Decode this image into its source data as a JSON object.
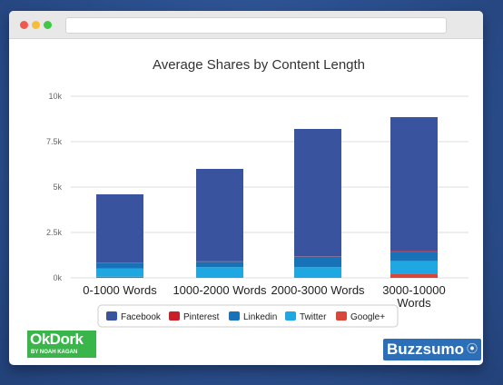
{
  "browser": {
    "address_text": ""
  },
  "chart_data": {
    "type": "bar",
    "stacked": true,
    "title": "Average Shares by Content Length",
    "categories": [
      [
        "0-1000 Words"
      ],
      [
        "1000-2000 Words"
      ],
      [
        "2000-3000 Words"
      ],
      [
        "3000-10000",
        "Words"
      ]
    ],
    "series": [
      {
        "name": "Google+",
        "color": "#d9473b",
        "values": [
          60,
          30,
          30,
          200
        ]
      },
      {
        "name": "Twitter",
        "color": "#1ea7e1",
        "values": [
          450,
          560,
          560,
          730
        ]
      },
      {
        "name": "Linkedin",
        "color": "#1872b7",
        "values": [
          300,
          300,
          580,
          480
        ]
      },
      {
        "name": "Pinterest",
        "color": "#c8202b",
        "values": [
          20,
          20,
          20,
          70
        ]
      },
      {
        "name": "Facebook",
        "color": "#3a539f",
        "values": [
          3770,
          5090,
          7010,
          7370
        ]
      }
    ],
    "legend_order": [
      "Facebook",
      "Pinterest",
      "Linkedin",
      "Twitter",
      "Google+"
    ],
    "y_ticks": [
      {
        "value": 0,
        "label": "0k"
      },
      {
        "value": 2500,
        "label": "2.5k"
      },
      {
        "value": 5000,
        "label": "5k"
      },
      {
        "value": 7500,
        "label": "7.5k"
      },
      {
        "value": 10000,
        "label": "10k"
      }
    ],
    "ylim": [
      0,
      10000
    ],
    "xlabel": "",
    "ylabel": "",
    "grid": true,
    "legend_position": "bottom"
  },
  "logos": {
    "okdork_main": "OkDork",
    "okdork_sub": "BY NOAH KAGAN",
    "buzzsumo": "Buzzsumo"
  }
}
